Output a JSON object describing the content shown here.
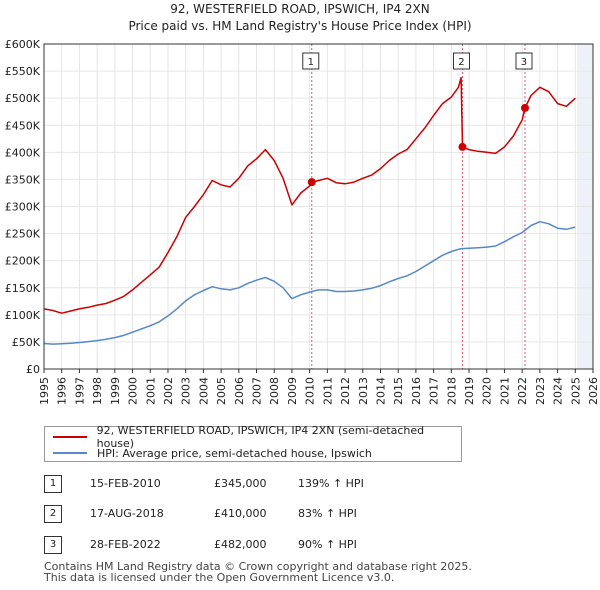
{
  "chart_data": {
    "type": "line",
    "title": "92, WESTERFIELD ROAD, IPSWICH, IP4 2XN",
    "subtitle": "Price paid vs. HM Land Registry's House Price Index (HPI)",
    "xlim": [
      1995,
      2026
    ],
    "ylim": [
      0,
      600000
    ],
    "x_ticks": [
      "1995",
      "1996",
      "1997",
      "1998",
      "1999",
      "2000",
      "2001",
      "2002",
      "2003",
      "2004",
      "2005",
      "2006",
      "2007",
      "2008",
      "2009",
      "2010",
      "2011",
      "2012",
      "2013",
      "2014",
      "2015",
      "2016",
      "2017",
      "2018",
      "2019",
      "2020",
      "2021",
      "2022",
      "2023",
      "2024",
      "2025",
      "2026"
    ],
    "y_ticks": [
      {
        "value": 0,
        "label": "£0"
      },
      {
        "value": 50000,
        "label": "£50K"
      },
      {
        "value": 100000,
        "label": "£100K"
      },
      {
        "value": 150000,
        "label": "£150K"
      },
      {
        "value": 200000,
        "label": "£200K"
      },
      {
        "value": 250000,
        "label": "£250K"
      },
      {
        "value": 300000,
        "label": "£300K"
      },
      {
        "value": 350000,
        "label": "£350K"
      },
      {
        "value": 400000,
        "label": "£400K"
      },
      {
        "value": 450000,
        "label": "£450K"
      },
      {
        "value": 500000,
        "label": "£500K"
      },
      {
        "value": 550000,
        "label": "£550K"
      },
      {
        "value": 600000,
        "label": "£600K"
      }
    ],
    "forecast_start": 2025.1,
    "series": [
      {
        "name": "92, WESTERFIELD ROAD, IPSWICH, IP4 2XN (semi-detached house)",
        "color": "#cc0000",
        "points": [
          [
            1995.0,
            111000
          ],
          [
            1995.5,
            108000
          ],
          [
            1996.0,
            103000
          ],
          [
            1996.5,
            107000
          ],
          [
            1997.0,
            111000
          ],
          [
            1997.5,
            114000
          ],
          [
            1998.0,
            118000
          ],
          [
            1998.5,
            121000
          ],
          [
            1999.0,
            127000
          ],
          [
            1999.5,
            134000
          ],
          [
            2000.0,
            146000
          ],
          [
            2000.5,
            160000
          ],
          [
            2001.0,
            174000
          ],
          [
            2001.5,
            188000
          ],
          [
            2002.0,
            215000
          ],
          [
            2002.5,
            244000
          ],
          [
            2003.0,
            280000
          ],
          [
            2003.5,
            300000
          ],
          [
            2004.0,
            322000
          ],
          [
            2004.5,
            348000
          ],
          [
            2005.0,
            340000
          ],
          [
            2005.5,
            336000
          ],
          [
            2006.0,
            352000
          ],
          [
            2006.5,
            375000
          ],
          [
            2007.0,
            388000
          ],
          [
            2007.5,
            405000
          ],
          [
            2008.0,
            385000
          ],
          [
            2008.5,
            352000
          ],
          [
            2009.0,
            303000
          ],
          [
            2009.5,
            325000
          ],
          [
            2010.0,
            338000
          ],
          [
            2010.12,
            345000
          ],
          [
            2010.5,
            348000
          ],
          [
            2011.0,
            352000
          ],
          [
            2011.5,
            344000
          ],
          [
            2012.0,
            342000
          ],
          [
            2012.5,
            345000
          ],
          [
            2013.0,
            352000
          ],
          [
            2013.5,
            358000
          ],
          [
            2014.0,
            370000
          ],
          [
            2014.5,
            385000
          ],
          [
            2015.0,
            397000
          ],
          [
            2015.5,
            405000
          ],
          [
            2016.0,
            425000
          ],
          [
            2016.5,
            445000
          ],
          [
            2017.0,
            468000
          ],
          [
            2017.5,
            490000
          ],
          [
            2018.0,
            502000
          ],
          [
            2018.4,
            520000
          ],
          [
            2018.55,
            538000
          ],
          [
            2018.63,
            410000
          ],
          [
            2019.0,
            405000
          ],
          [
            2019.5,
            402000
          ],
          [
            2020.0,
            400000
          ],
          [
            2020.5,
            398000
          ],
          [
            2021.0,
            410000
          ],
          [
            2021.5,
            430000
          ],
          [
            2022.0,
            460000
          ],
          [
            2022.16,
            482000
          ],
          [
            2022.5,
            505000
          ],
          [
            2023.0,
            520000
          ],
          [
            2023.5,
            512000
          ],
          [
            2024.0,
            490000
          ],
          [
            2024.5,
            485000
          ],
          [
            2025.0,
            500000
          ]
        ]
      },
      {
        "name": "HPI: Average price, semi-detached house, Ipswich",
        "color": "#5588cc",
        "points": [
          [
            1995.0,
            47000
          ],
          [
            1995.5,
            46000
          ],
          [
            1996.0,
            46500
          ],
          [
            1996.5,
            47500
          ],
          [
            1997.0,
            49000
          ],
          [
            1997.5,
            50500
          ],
          [
            1998.0,
            52500
          ],
          [
            1998.5,
            55000
          ],
          [
            1999.0,
            58000
          ],
          [
            1999.5,
            62000
          ],
          [
            2000.0,
            68000
          ],
          [
            2000.5,
            74000
          ],
          [
            2001.0,
            80000
          ],
          [
            2001.5,
            87000
          ],
          [
            2002.0,
            98000
          ],
          [
            2002.5,
            111000
          ],
          [
            2003.0,
            126000
          ],
          [
            2003.5,
            137000
          ],
          [
            2004.0,
            145000
          ],
          [
            2004.5,
            152000
          ],
          [
            2005.0,
            148000
          ],
          [
            2005.5,
            146000
          ],
          [
            2006.0,
            150000
          ],
          [
            2006.5,
            158000
          ],
          [
            2007.0,
            164000
          ],
          [
            2007.5,
            169000
          ],
          [
            2008.0,
            162000
          ],
          [
            2008.5,
            150000
          ],
          [
            2009.0,
            130000
          ],
          [
            2009.5,
            137000
          ],
          [
            2010.0,
            142000
          ],
          [
            2010.5,
            146000
          ],
          [
            2011.0,
            146000
          ],
          [
            2011.5,
            143000
          ],
          [
            2012.0,
            143000
          ],
          [
            2012.5,
            144000
          ],
          [
            2013.0,
            146000
          ],
          [
            2013.5,
            149000
          ],
          [
            2014.0,
            154000
          ],
          [
            2014.5,
            161000
          ],
          [
            2015.0,
            167000
          ],
          [
            2015.5,
            172000
          ],
          [
            2016.0,
            180000
          ],
          [
            2016.5,
            190000
          ],
          [
            2017.0,
            200000
          ],
          [
            2017.5,
            210000
          ],
          [
            2018.0,
            217000
          ],
          [
            2018.5,
            222000
          ],
          [
            2019.0,
            223000
          ],
          [
            2019.5,
            224000
          ],
          [
            2020.0,
            225000
          ],
          [
            2020.5,
            227000
          ],
          [
            2021.0,
            235000
          ],
          [
            2021.5,
            244000
          ],
          [
            2022.0,
            252000
          ],
          [
            2022.5,
            265000
          ],
          [
            2023.0,
            272000
          ],
          [
            2023.5,
            268000
          ],
          [
            2024.0,
            260000
          ],
          [
            2024.5,
            258000
          ],
          [
            2025.0,
            262000
          ]
        ]
      }
    ],
    "sales": [
      {
        "num": "1",
        "x": 2010.12,
        "price_value": 345000,
        "date": "15-FEB-2010",
        "price": "£345,000",
        "hpi": "139% ↑ HPI"
      },
      {
        "num": "2",
        "x": 2018.63,
        "price_value": 410000,
        "date": "17-AUG-2018",
        "price": "£410,000",
        "hpi": "83% ↑ HPI"
      },
      {
        "num": "3",
        "x": 2022.16,
        "price_value": 482000,
        "date": "28-FEB-2022",
        "price": "£482,000",
        "hpi": "90% ↑ HPI"
      }
    ]
  },
  "colors": {
    "property": "#cc0000",
    "hpi": "#5588cc",
    "marker_line": "#e05a7a"
  },
  "legend": {
    "property_label": "92, WESTERFIELD ROAD, IPSWICH, IP4 2XN (semi-detached house)",
    "hpi_label": "HPI: Average price, semi-detached house, Ipswich"
  },
  "footer": {
    "line1": "Contains HM Land Registry data © Crown copyright and database right 2025.",
    "line2": "This data is licensed under the Open Government Licence v3.0."
  }
}
